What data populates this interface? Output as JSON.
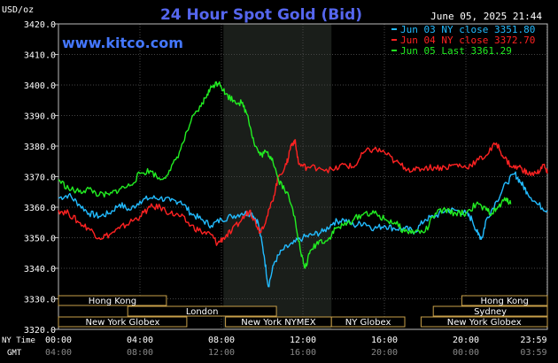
{
  "chart_data": {
    "type": "line",
    "title": "24 Hour Spot Gold (Bid)",
    "ylabel": "USD/oz",
    "timestamp": "June 05, 2025 21:44",
    "watermark": "www.kitco.com",
    "ylim": [
      3320,
      3420
    ],
    "yticks": [
      "3420.0",
      "3410.0",
      "3400.0",
      "3390.0",
      "3380.0",
      "3370.0",
      "3360.0",
      "3350.0",
      "3340.0",
      "3330.0",
      "3320.0"
    ],
    "xlim": [
      0,
      24
    ],
    "xticks": [
      {
        "ny": "00:00",
        "gmt": "04:00",
        "h": 0
      },
      {
        "ny": "04:00",
        "gmt": "08:00",
        "h": 4
      },
      {
        "ny": "08:00",
        "gmt": "12:00",
        "h": 8
      },
      {
        "ny": "12:00",
        "gmt": "16:00",
        "h": 12
      },
      {
        "ny": "16:00",
        "gmt": "20:00",
        "h": 16
      },
      {
        "ny": "20:00",
        "gmt": "00:00",
        "h": 20
      },
      {
        "ny": "23:59",
        "gmt": "03:59",
        "h": 23.98
      }
    ],
    "x_axis_row_labels": {
      "ny": "NY Time",
      "gmt": "GMT"
    },
    "shaded_region_hours": [
      8.1,
      13.4
    ],
    "sessions": [
      {
        "name": "Hong Kong",
        "row": 0,
        "start": 0,
        "end": 5.3
      },
      {
        "name": "Hong Kong",
        "row": 0,
        "start": 19.8,
        "end": 24
      },
      {
        "name": "London",
        "row": 1,
        "start": 3.4,
        "end": 10.7
      },
      {
        "name": "Sydney",
        "row": 1,
        "start": 18.4,
        "end": 24
      },
      {
        "name": "New York Globex",
        "row": 2,
        "start": 0,
        "end": 6.3
      },
      {
        "name": "New York NYMEX",
        "row": 2,
        "start": 8.2,
        "end": 13.4
      },
      {
        "name": "NY Globex",
        "row": 2,
        "start": 13.4,
        "end": 17.0
      },
      {
        "name": "New York Globex",
        "row": 2,
        "start": 17.8,
        "end": 24
      }
    ],
    "series": [
      {
        "name": "Jun 03 NY close 3351.80",
        "color": "#22bbff",
        "points": [
          [
            0,
            3363
          ],
          [
            0.5,
            3364
          ],
          [
            1,
            3361
          ],
          [
            1.5,
            3358
          ],
          [
            2,
            3357
          ],
          [
            2.5,
            3358
          ],
          [
            3,
            3361
          ],
          [
            3.5,
            3359
          ],
          [
            4,
            3362
          ],
          [
            4.5,
            3363
          ],
          [
            5,
            3363
          ],
          [
            5.5,
            3362
          ],
          [
            6,
            3362
          ],
          [
            6.5,
            3358
          ],
          [
            7,
            3356
          ],
          [
            7.5,
            3354
          ],
          [
            8,
            3356
          ],
          [
            8.5,
            3357
          ],
          [
            9,
            3358
          ],
          [
            9.5,
            3358
          ],
          [
            9.8,
            3355
          ],
          [
            10.1,
            3344
          ],
          [
            10.3,
            3334
          ],
          [
            10.6,
            3342
          ],
          [
            11,
            3346
          ],
          [
            11.5,
            3348
          ],
          [
            12,
            3350
          ],
          [
            12.5,
            3351
          ],
          [
            13,
            3352
          ],
          [
            13.5,
            3355
          ],
          [
            14,
            3356
          ],
          [
            14.5,
            3354
          ],
          [
            15,
            3355
          ],
          [
            15.5,
            3353
          ],
          [
            16,
            3354
          ],
          [
            16.5,
            3353
          ],
          [
            17,
            3353
          ],
          [
            17.5,
            3352
          ],
          [
            18,
            3356
          ],
          [
            18.5,
            3357
          ],
          [
            19,
            3359
          ],
          [
            19.5,
            3359
          ],
          [
            20,
            3358
          ],
          [
            20.3,
            3356
          ],
          [
            20.6,
            3351
          ],
          [
            20.8,
            3350
          ],
          [
            21,
            3356
          ],
          [
            21.5,
            3362
          ],
          [
            22,
            3368
          ],
          [
            22.4,
            3371
          ],
          [
            22.7,
            3368
          ],
          [
            23,
            3365
          ],
          [
            23.5,
            3361
          ],
          [
            24,
            3359
          ]
        ]
      },
      {
        "name": "Jun 04 NY close 3372.70",
        "color": "#ff2222",
        "points": [
          [
            0,
            3359
          ],
          [
            0.5,
            3358
          ],
          [
            1,
            3355
          ],
          [
            1.5,
            3353
          ],
          [
            2,
            3350
          ],
          [
            2.5,
            3351
          ],
          [
            3,
            3353
          ],
          [
            3.5,
            3355
          ],
          [
            4,
            3357
          ],
          [
            4.5,
            3360
          ],
          [
            5,
            3360
          ],
          [
            5.5,
            3358
          ],
          [
            6,
            3357
          ],
          [
            6.5,
            3354
          ],
          [
            7,
            3352
          ],
          [
            7.5,
            3351
          ],
          [
            7.8,
            3348
          ],
          [
            8.1,
            3350
          ],
          [
            8.5,
            3352
          ],
          [
            9,
            3356
          ],
          [
            9.4,
            3359
          ],
          [
            9.6,
            3356
          ],
          [
            9.9,
            3352
          ],
          [
            10.2,
            3356
          ],
          [
            10.5,
            3362
          ],
          [
            10.8,
            3370
          ],
          [
            11.2,
            3374
          ],
          [
            11.4,
            3380
          ],
          [
            11.6,
            3382
          ],
          [
            11.8,
            3374
          ],
          [
            12.2,
            3373
          ],
          [
            12.8,
            3373
          ],
          [
            13.5,
            3372
          ],
          [
            14,
            3374
          ],
          [
            14.5,
            3373
          ],
          [
            15,
            3378
          ],
          [
            15.5,
            3379
          ],
          [
            16,
            3378
          ],
          [
            16.5,
            3375
          ],
          [
            17,
            3373
          ],
          [
            17.5,
            3372
          ],
          [
            18,
            3373
          ],
          [
            18.5,
            3373
          ],
          [
            19,
            3373
          ],
          [
            19.5,
            3374
          ],
          [
            20,
            3373
          ],
          [
            20.5,
            3375
          ],
          [
            21,
            3377
          ],
          [
            21.5,
            3381
          ],
          [
            21.9,
            3376
          ],
          [
            22.3,
            3373
          ],
          [
            22.7,
            3373
          ],
          [
            23,
            3371
          ],
          [
            23.5,
            3371
          ],
          [
            23.8,
            3374
          ],
          [
            24,
            3371
          ]
        ]
      },
      {
        "name": "Jun 05 Last 3361.29",
        "color": "#22ee22",
        "points": [
          [
            0,
            3369
          ],
          [
            0.5,
            3366
          ],
          [
            1,
            3365
          ],
          [
            1.5,
            3366
          ],
          [
            2,
            3364
          ],
          [
            2.5,
            3364
          ],
          [
            3,
            3366
          ],
          [
            3.5,
            3367
          ],
          [
            4,
            3371
          ],
          [
            4.5,
            3372
          ],
          [
            5,
            3369
          ],
          [
            5.5,
            3372
          ],
          [
            6,
            3379
          ],
          [
            6.5,
            3388
          ],
          [
            7,
            3393
          ],
          [
            7.3,
            3397
          ],
          [
            7.6,
            3400
          ],
          [
            7.9,
            3401
          ],
          [
            8.2,
            3397
          ],
          [
            8.6,
            3395
          ],
          [
            9,
            3394
          ],
          [
            9.3,
            3390
          ],
          [
            9.6,
            3381
          ],
          [
            9.9,
            3377
          ],
          [
            10.2,
            3378
          ],
          [
            10.5,
            3376
          ],
          [
            10.8,
            3369
          ],
          [
            11.2,
            3365
          ],
          [
            11.6,
            3357
          ],
          [
            11.9,
            3345
          ],
          [
            12.1,
            3340
          ],
          [
            12.4,
            3346
          ],
          [
            12.8,
            3349
          ],
          [
            13.2,
            3349
          ],
          [
            13.6,
            3353
          ],
          [
            14,
            3354
          ],
          [
            14.5,
            3356
          ],
          [
            15,
            3358
          ],
          [
            15.5,
            3358
          ],
          [
            16,
            3356
          ],
          [
            16.5,
            3355
          ],
          [
            17,
            3352
          ],
          [
            17.5,
            3352
          ],
          [
            18,
            3352
          ],
          [
            18.5,
            3358
          ],
          [
            19,
            3359
          ],
          [
            19.5,
            3358
          ],
          [
            20,
            3358
          ],
          [
            20.5,
            3361
          ],
          [
            21,
            3359
          ],
          [
            21.3,
            3358
          ],
          [
            21.6,
            3360
          ],
          [
            22,
            3363
          ],
          [
            22.2,
            3361
          ]
        ]
      }
    ]
  }
}
